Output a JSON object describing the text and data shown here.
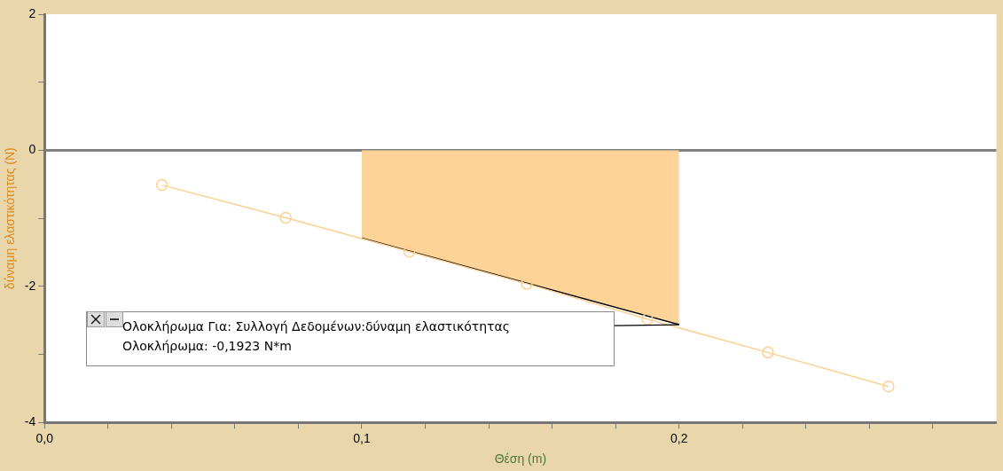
{
  "chart_data": {
    "type": "line",
    "xlabel": "Θέση (m)",
    "ylabel": "δύναμη ελαστικότητας (N)",
    "xlim": [
      0,
      0.3
    ],
    "xticks": [
      {
        "value": 0,
        "label": "0,0"
      },
      {
        "value": 0.02,
        "label": null
      },
      {
        "value": 0.04,
        "label": null
      },
      {
        "value": 0.06,
        "label": null
      },
      {
        "value": 0.08,
        "label": null
      },
      {
        "value": 0.1,
        "label": "0,1"
      },
      {
        "value": 0.12,
        "label": null
      },
      {
        "value": 0.14,
        "label": null
      },
      {
        "value": 0.16,
        "label": null
      },
      {
        "value": 0.18,
        "label": null
      },
      {
        "value": 0.2,
        "label": "0,2"
      },
      {
        "value": 0.22,
        "label": null
      },
      {
        "value": 0.24,
        "label": null
      },
      {
        "value": 0.26,
        "label": null
      },
      {
        "value": 0.28,
        "label": null
      }
    ],
    "ylim": [
      -4,
      2
    ],
    "yticks": [
      -4,
      {
        "value": -3,
        "label": null
      },
      -2,
      {
        "value": -1,
        "label": null
      },
      0,
      {
        "value": 1,
        "label": null
      },
      2
    ],
    "series": [
      {
        "color": "#fdcf90",
        "x": [
          0.037,
          0.076,
          0.115,
          0.152,
          0.19,
          0.228,
          0.266
        ],
        "values": [
          -0.51,
          -0.99,
          -1.49,
          -1.96,
          -2.48,
          -2.97,
          -3.47
        ]
      },
      {
        "type": "area",
        "marker": "none",
        "color": "#fdd398",
        "x": [
          0.1,
          0.2
        ],
        "values": [
          -1.29,
          -2.56
        ]
      }
    ],
    "marker": "circle",
    "grid": false,
    "legend": false,
    "ref_lines": [
      {
        "axis": "y",
        "value": 0,
        "color": "#808080"
      }
    ],
    "annotations": [
      "Ολοκλήρωμα Για: Συλλογή Δεδομένων:δύναμη ελαστικότητας",
      "Ολοκλήρωμα: -0,1923 N*m"
    ]
  }
}
